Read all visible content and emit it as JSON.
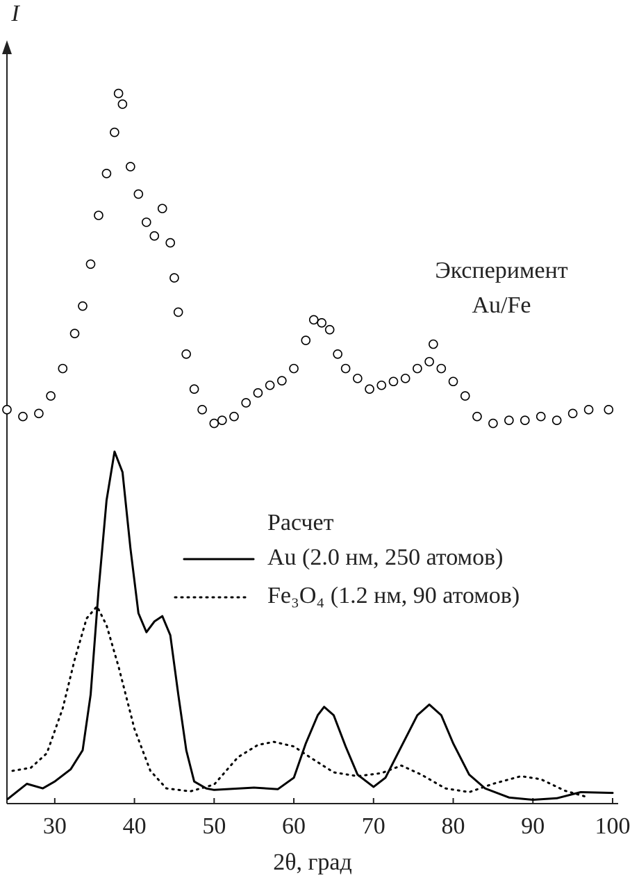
{
  "chart_data": {
    "type": "line",
    "y_label": "I",
    "x_label": "2θ, град",
    "xlim": [
      24,
      100
    ],
    "xticks": [
      30,
      40,
      50,
      60,
      70,
      80,
      90,
      100
    ],
    "ylim": [
      0,
      100
    ],
    "annotations": [
      "Эксперимент",
      "Au/Fe"
    ],
    "legend_title": "Расчет",
    "series": [
      {
        "type": "scatter",
        "color": "#000000",
        "x": [
          24,
          26,
          28,
          29.5,
          31,
          32.5,
          33.5,
          34.5,
          35.5,
          36.5,
          37.5,
          38,
          38.5,
          39.5,
          40.5,
          41.5,
          42.5,
          43.5,
          44.5,
          45,
          45.5,
          46.5,
          47.5,
          48.5,
          50,
          51,
          52.5,
          54,
          55.5,
          57,
          58.5,
          60,
          61.5,
          62.5,
          63.5,
          64.5,
          65.5,
          66.5,
          68,
          69.5,
          71,
          72.5,
          74,
          75.5,
          77,
          77.5,
          78.5,
          80,
          81.5,
          83,
          85,
          87,
          89,
          91,
          93,
          95,
          97,
          99.5
        ],
        "values": [
          51.7,
          50.8,
          51.2,
          53.5,
          57.1,
          61.7,
          65.3,
          70.8,
          77.2,
          82.7,
          88.1,
          93.2,
          91.8,
          83.6,
          80,
          76.3,
          74.5,
          78.1,
          73.6,
          69,
          64.5,
          59,
          54.4,
          51.7,
          49.9,
          50.3,
          50.8,
          52.6,
          53.9,
          54.9,
          55.5,
          57.1,
          60.8,
          63.5,
          63.1,
          62.2,
          59,
          57.1,
          55.8,
          54.4,
          54.9,
          55.4,
          55.8,
          57.1,
          58,
          60.3,
          57.1,
          55.4,
          53.5,
          50.8,
          49.9,
          50.3,
          50.3,
          50.8,
          50.3,
          51.2,
          51.7,
          51.7
        ]
      },
      {
        "type": "line",
        "name": "Au (2.0 нм, 250 атомов)",
        "color": "#000000",
        "style": "solid",
        "x": [
          24.1,
          26.5,
          28.5,
          30,
          32,
          33.5,
          34.5,
          35.5,
          36.5,
          37.5,
          38.5,
          39.5,
          40.5,
          41.5,
          42.5,
          43.5,
          44.5,
          45.5,
          46.5,
          47.5,
          49,
          50,
          55,
          58,
          60,
          61.5,
          63,
          63.8,
          65,
          66.5,
          68,
          70,
          71.5,
          73.5,
          75.5,
          77,
          78.5,
          80,
          82,
          84,
          87,
          90,
          93,
          96,
          100
        ],
        "values": [
          0.6,
          2.6,
          2.0,
          2.9,
          4.5,
          7.0,
          14.3,
          28,
          39.8,
          46.2,
          43.5,
          33.5,
          25,
          22.5,
          23.9,
          24.6,
          22.1,
          14.3,
          7,
          2.9,
          2.0,
          1.8,
          2.1,
          1.9,
          3.4,
          7.9,
          11.6,
          12.7,
          11.6,
          7.5,
          3.8,
          2.2,
          3.4,
          7.5,
          11.6,
          13.0,
          11.6,
          7.9,
          3.8,
          2.0,
          0.8,
          0.5,
          0.7,
          1.5,
          1.4
        ]
      },
      {
        "type": "line",
        "name": "Fe₃O₄ (1.2 нм, 90 атомов)",
        "color": "#000000",
        "style": "dotted",
        "x": [
          24.7,
          27,
          29,
          31,
          32.5,
          34,
          35.3,
          36.5,
          38,
          40,
          42,
          44,
          47,
          50,
          53,
          55.5,
          57.5,
          60,
          62,
          65,
          68,
          71,
          73.5,
          76,
          79,
          82,
          85,
          88.5,
          91,
          94,
          97
        ],
        "values": [
          4.3,
          4.7,
          6.6,
          12.5,
          18.9,
          24.3,
          25.9,
          23.4,
          18,
          9.8,
          4.3,
          2.0,
          1.6,
          2.5,
          6.1,
          7.7,
          8.1,
          7.5,
          6.1,
          4.1,
          3.6,
          4.0,
          5.0,
          3.8,
          2.0,
          1.5,
          2.6,
          3.6,
          3.2,
          1.7,
          0.8
        ]
      }
    ]
  }
}
